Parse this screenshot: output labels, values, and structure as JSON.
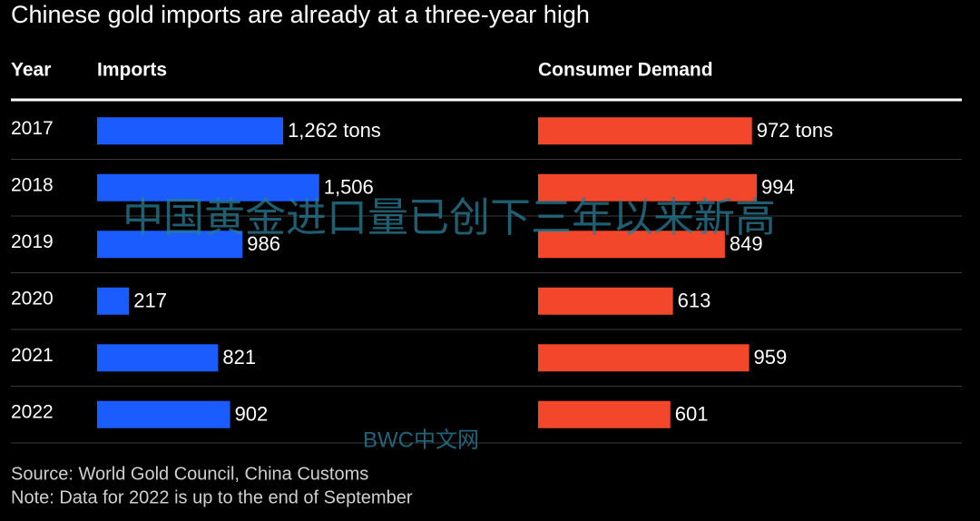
{
  "chart_data": {
    "type": "bar",
    "title": "Chinese gold imports are already at a three-year high",
    "category_header": "Year",
    "categories": [
      "2017",
      "2018",
      "2019",
      "2020",
      "2021",
      "2022"
    ],
    "series": [
      {
        "name": "Imports",
        "color": "#1a5cff",
        "values": [
          1262,
          1506,
          986,
          217,
          821,
          902
        ],
        "value_labels": [
          "1,262 tons",
          "1,506",
          "986",
          "217",
          "821",
          "902"
        ]
      },
      {
        "name": "Consumer Demand",
        "color": "#f2472a",
        "values": [
          972,
          994,
          849,
          613,
          959,
          601
        ],
        "value_labels": [
          "972 tons",
          "994",
          "849",
          "613",
          "959",
          "601"
        ]
      }
    ],
    "source": "Source: World Gold Council, China Customs",
    "note": "Note: Data for 2022 is up to the end of September",
    "watermarks": [
      "中国黄金进口量已创下三年以来新高",
      "BWC中文网"
    ]
  }
}
